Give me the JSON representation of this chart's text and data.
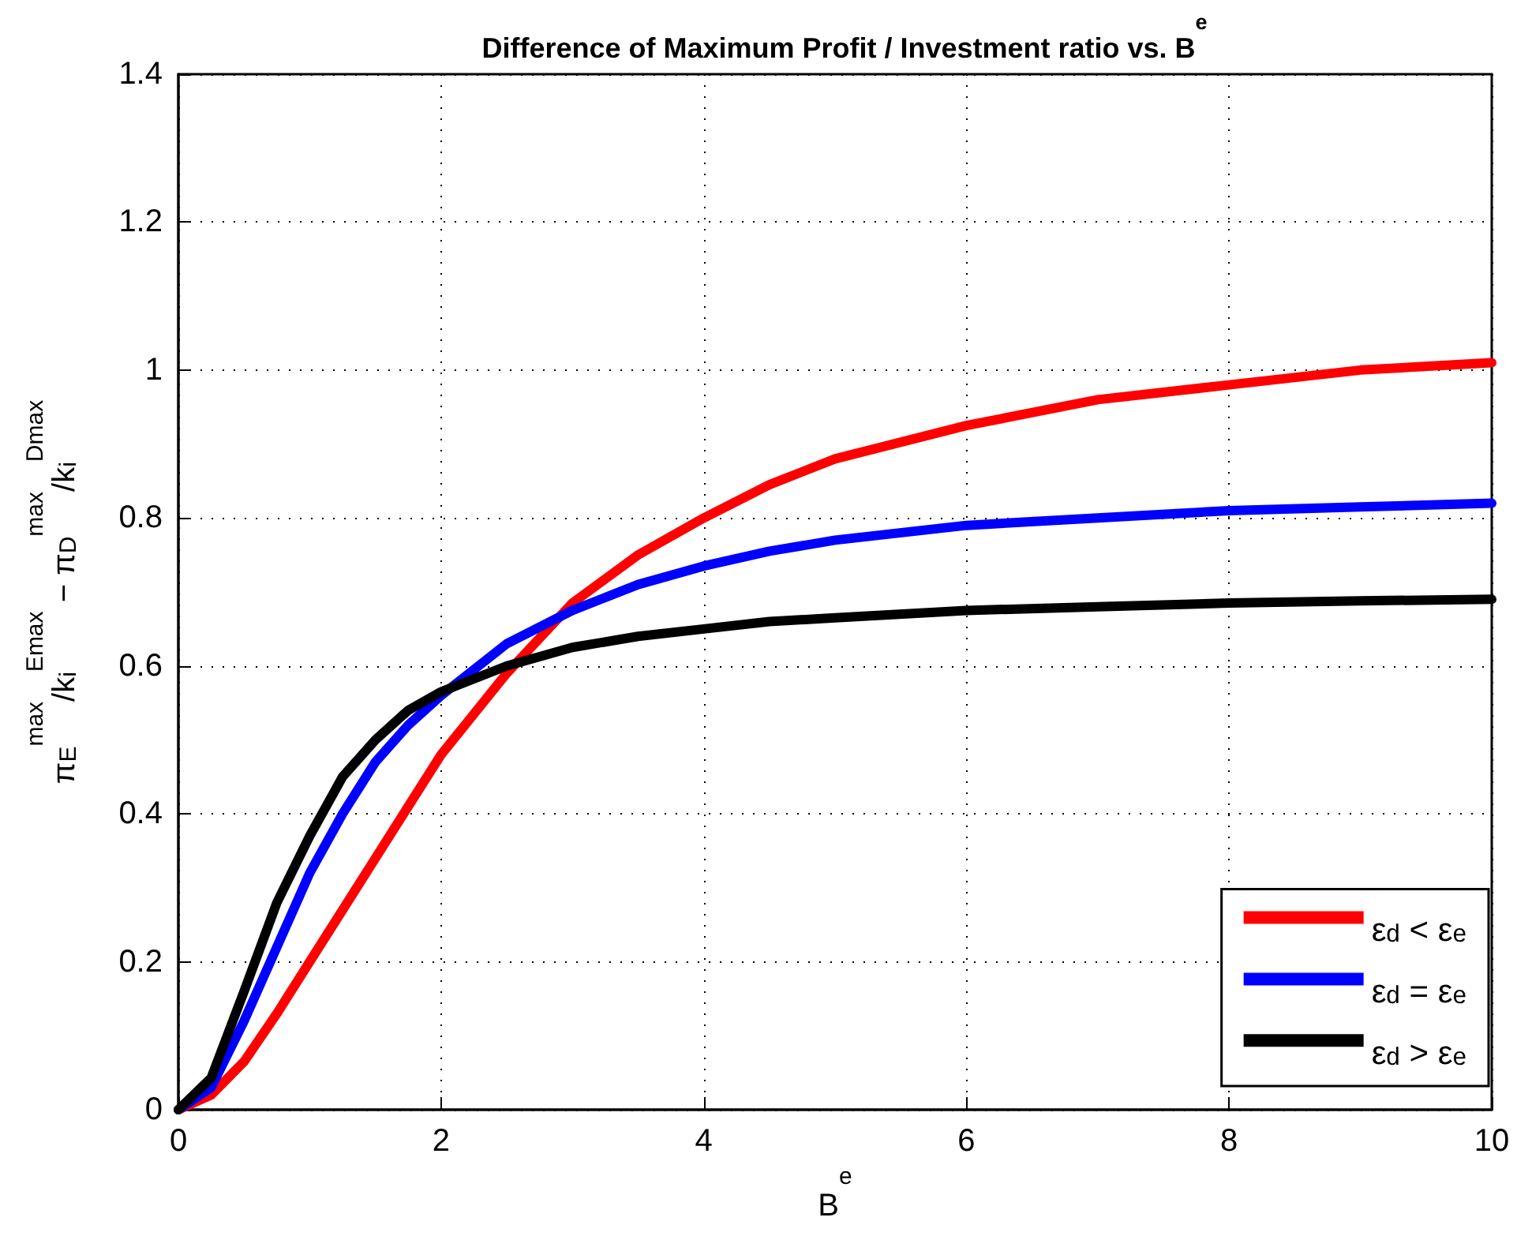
{
  "chart_data": {
    "type": "line",
    "title": "Difference of Maximum Profit / Investment ratio vs. B$^{e}$",
    "xlabel": "B$^{e}$",
    "ylabel": "π$_{E}$$^{max}$/k$_{i}$$^{Emax}$ − π$_{D}$$^{max}$/k$_{i}$$^{Dmax}$",
    "x": [
      0,
      0.25,
      0.5,
      0.75,
      1,
      1.25,
      1.5,
      1.75,
      2,
      2.5,
      3,
      3.5,
      4,
      4.5,
      5,
      6,
      7,
      8,
      9,
      10
    ],
    "series": [
      {
        "name": "ε$_{d}$ < ε$_{e}$",
        "color": "#ff0000",
        "values": [
          0,
          0.02,
          0.065,
          0.13,
          0.2,
          0.27,
          0.34,
          0.41,
          0.48,
          0.59,
          0.685,
          0.75,
          0.8,
          0.845,
          0.88,
          0.925,
          0.96,
          0.98,
          1,
          1.01
        ]
      },
      {
        "name": "ε$_{d}$ = ε$_{e}$",
        "color": "#0000ff",
        "values": [
          0,
          0.03,
          0.12,
          0.22,
          0.32,
          0.4,
          0.47,
          0.52,
          0.56,
          0.63,
          0.675,
          0.71,
          0.735,
          0.755,
          0.77,
          0.79,
          0.8,
          0.81,
          0.815,
          0.82
        ]
      },
      {
        "name": "ε$_{d}$ > ε$_{e}$",
        "color": "#000000",
        "values": [
          0,
          0.043,
          0.16,
          0.28,
          0.37,
          0.45,
          0.5,
          0.54,
          0.565,
          0.6,
          0.625,
          0.64,
          0.65,
          0.66,
          0.665,
          0.675,
          0.68,
          0.685,
          0.688,
          0.69
        ]
      }
    ],
    "xlim": [
      0,
      10
    ],
    "xticks": [
      0,
      2,
      4,
      6,
      8,
      10
    ],
    "ylim": [
      0,
      1.4
    ],
    "yticks": [
      0,
      0.2,
      0.4,
      0.6,
      0.8,
      1,
      1.2,
      1.4
    ],
    "grid": true,
    "legend": "bottom right",
    "marker": "none",
    "line_style": "solid"
  }
}
